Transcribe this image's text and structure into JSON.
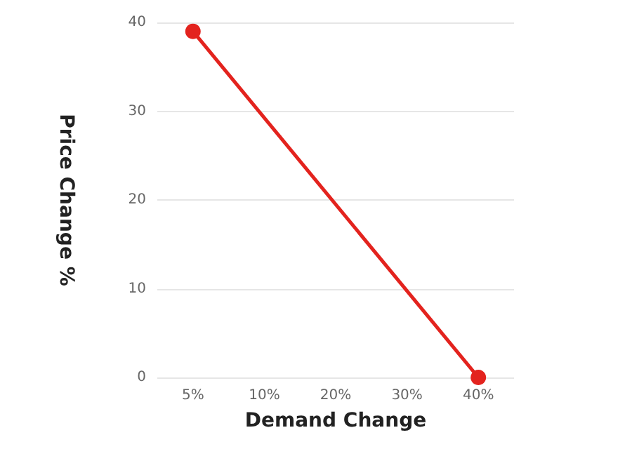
{
  "chart_data": {
    "type": "line",
    "xlabel": "Demand Change",
    "ylabel": "Price Change %",
    "categories": [
      "5%",
      "10%",
      "20%",
      "30%",
      "40%"
    ],
    "series": [
      {
        "color": "#e3231e",
        "values": [
          39,
          null,
          null,
          null,
          0
        ]
      }
    ],
    "ylim": [
      0,
      40
    ],
    "yticks": [
      0,
      10,
      20,
      30,
      40
    ],
    "grid": "y",
    "marker": "circle",
    "line_style": "solid"
  }
}
